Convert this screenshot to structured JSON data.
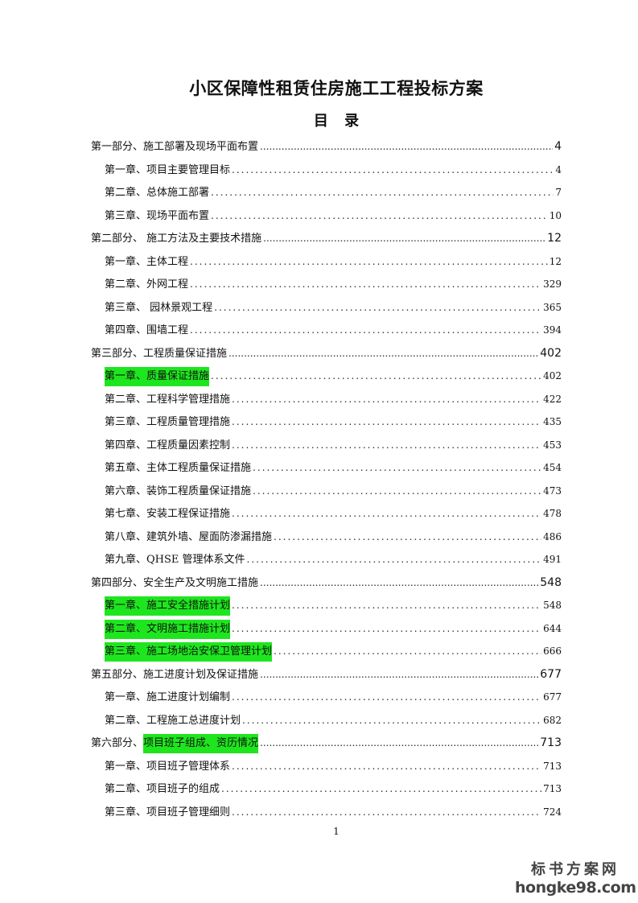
{
  "document": {
    "title": "小区保障性租赁住房施工工程投标方案",
    "subtitle": "目 录",
    "page_number": "1",
    "highlight_color": "#1ee61e",
    "toc": [
      {
        "level": "part",
        "text": "第一部分、施工部署及现场平面布置",
        "page": "4",
        "highlight": false
      },
      {
        "level": "chapter",
        "text": "第一章、项目主要管理目标",
        "page": "4",
        "highlight": false
      },
      {
        "level": "chapter",
        "text": "第二章、总体施工部署",
        "page": "7",
        "highlight": false
      },
      {
        "level": "chapter",
        "text": "第三章、现场平面布置",
        "page": "10",
        "highlight": false
      },
      {
        "level": "part",
        "text": "第二部分、 施工方法及主要技术措施",
        "page": "12",
        "highlight": false
      },
      {
        "level": "chapter",
        "text": "第一章、主体工程",
        "page": "12",
        "highlight": false
      },
      {
        "level": "chapter",
        "text": "第二章、外网工程",
        "page": "329",
        "highlight": false
      },
      {
        "level": "chapter",
        "text": "第三章、 园林景观工程",
        "page": "365",
        "highlight": false
      },
      {
        "level": "chapter",
        "text": "第四章、围墙工程",
        "page": "394",
        "highlight": false
      },
      {
        "level": "part",
        "text": "第三部分、工程质量保证措施",
        "page": "402",
        "highlight": false
      },
      {
        "level": "chapter",
        "text": "第一章、质量保证措施",
        "page": "402",
        "highlight": true
      },
      {
        "level": "chapter",
        "text": "第二章、工程科学管理措施",
        "page": "422",
        "highlight": false
      },
      {
        "level": "chapter",
        "text": "第三章、工程质量管理措施",
        "page": "435",
        "highlight": false
      },
      {
        "level": "chapter",
        "text": "第四章、工程质量因素控制",
        "page": "453",
        "highlight": false
      },
      {
        "level": "chapter",
        "text": "第五章、主体工程质量保证措施",
        "page": "454",
        "highlight": false
      },
      {
        "level": "chapter",
        "text": "第六章、装饰工程质量保证措施",
        "page": "473",
        "highlight": false
      },
      {
        "level": "chapter",
        "text": "第七章、安装工程保证措施",
        "page": "478",
        "highlight": false
      },
      {
        "level": "chapter",
        "text": "第八章、建筑外墙、屋面防渗漏措施",
        "page": "486",
        "highlight": false
      },
      {
        "level": "chapter",
        "text": "第九章、QHSE 管理体系文件",
        "page": "491",
        "highlight": false
      },
      {
        "level": "part",
        "text": "第四部分、安全生产及文明施工措施",
        "page": "548",
        "highlight": false
      },
      {
        "level": "chapter",
        "text": "第一章、施工安全措施计划",
        "page": "548",
        "highlight": true
      },
      {
        "level": "chapter",
        "text": "第二章、文明施工措施计划",
        "page": "644",
        "highlight": true
      },
      {
        "level": "chapter",
        "text": "第三章、施工场地治安保卫管理计划",
        "page": "666",
        "highlight": true
      },
      {
        "level": "part",
        "text": "第五部分、施工进度计划及保证措施",
        "page": "677",
        "highlight": false
      },
      {
        "level": "chapter",
        "text": "第一章、施工进度计划编制",
        "page": "677",
        "highlight": false
      },
      {
        "level": "chapter",
        "text": "第二章、工程施工总进度计划",
        "page": "682",
        "highlight": false
      },
      {
        "level": "part",
        "text": "第六部分、 ",
        "text_highlighted": "项目班子组成、资历情况",
        "page": "713",
        "highlight": false
      },
      {
        "level": "chapter",
        "text": "第一章、项目班子管理体系",
        "page": "713",
        "highlight": false
      },
      {
        "level": "chapter",
        "text": "第二章、项目班子的组成",
        "page": "713",
        "highlight": false
      },
      {
        "level": "chapter",
        "text": "第三章、项目班子管理细则",
        "page": "724",
        "highlight": false
      }
    ]
  },
  "watermark": {
    "line1": "标书方案网",
    "line2": "hongke98.com"
  }
}
